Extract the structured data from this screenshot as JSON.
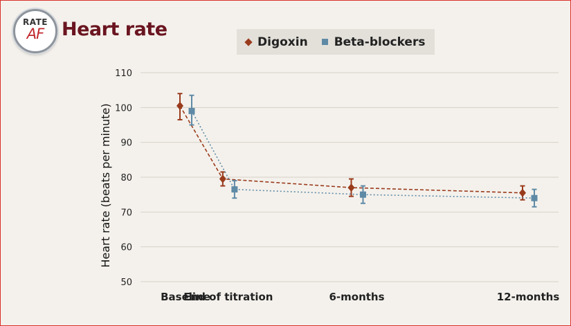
{
  "logo": {
    "top_text": "RATE",
    "bottom_text": "AF"
  },
  "header": {
    "title": "Heart rate"
  },
  "legend": {
    "items": [
      {
        "label": "Digoxin",
        "marker": "diamond",
        "color": "#9a3b1c"
      },
      {
        "label": "Beta-blockers",
        "marker": "square",
        "color": "#5f8aa6"
      }
    ]
  },
  "chart_data": {
    "type": "line",
    "title": "Heart rate",
    "ylabel": "Heart rate (beats per minute)",
    "xlabel": "",
    "categories": [
      "Baseline",
      "End of titration",
      "6-months",
      "12-months"
    ],
    "x_months": [
      0,
      1.5,
      6,
      12
    ],
    "ylim": [
      50,
      110
    ],
    "yticks": [
      50,
      60,
      70,
      80,
      90,
      100,
      110
    ],
    "grid": true,
    "error_bars": true,
    "series": [
      {
        "name": "Digoxin",
        "values": [
          100.5,
          79.5,
          77,
          75.5
        ],
        "error_low": [
          96.5,
          77.5,
          74.5,
          73.5
        ],
        "error_high": [
          104,
          81.5,
          79.5,
          77.5
        ],
        "color": "#9a3b1c",
        "marker": "diamond",
        "line_style": "dashed"
      },
      {
        "name": "Beta-blockers",
        "values": [
          99,
          76.5,
          75,
          74
        ],
        "error_low": [
          95,
          74,
          72.5,
          71.5
        ],
        "error_high": [
          103.5,
          79,
          77.5,
          76.5
        ],
        "color": "#5f8aa6",
        "marker": "square",
        "line_style": "dotted"
      }
    ]
  }
}
